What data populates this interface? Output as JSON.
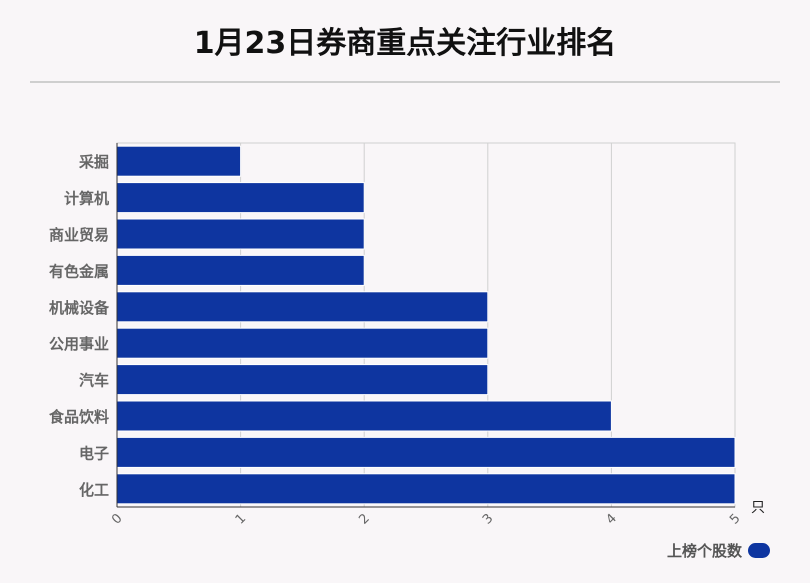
{
  "title": "1月23日券商重点关注行业排名",
  "colors": {
    "bar": "#0e35a0",
    "grid": "#d0d0d0",
    "axis": "#333333",
    "label": "#666666"
  },
  "chart_data": {
    "type": "bar",
    "orientation": "horizontal",
    "title": "1月23日券商重点关注行业排名",
    "categories": [
      "采掘",
      "计算机",
      "商业贸易",
      "有色金属",
      "机械设备",
      "公用事业",
      "汽车",
      "食品饮料",
      "电子",
      "化工"
    ],
    "series": [
      {
        "name": "上榜个股数",
        "values": [
          1,
          2,
          2,
          2,
          3,
          3,
          3,
          4,
          5,
          5
        ]
      }
    ],
    "xlim": [
      0,
      5
    ],
    "xticks": [
      "0",
      "1",
      "2",
      "3",
      "4",
      "5"
    ],
    "xunit": "只",
    "grid": true,
    "legend": "bottom-right"
  }
}
